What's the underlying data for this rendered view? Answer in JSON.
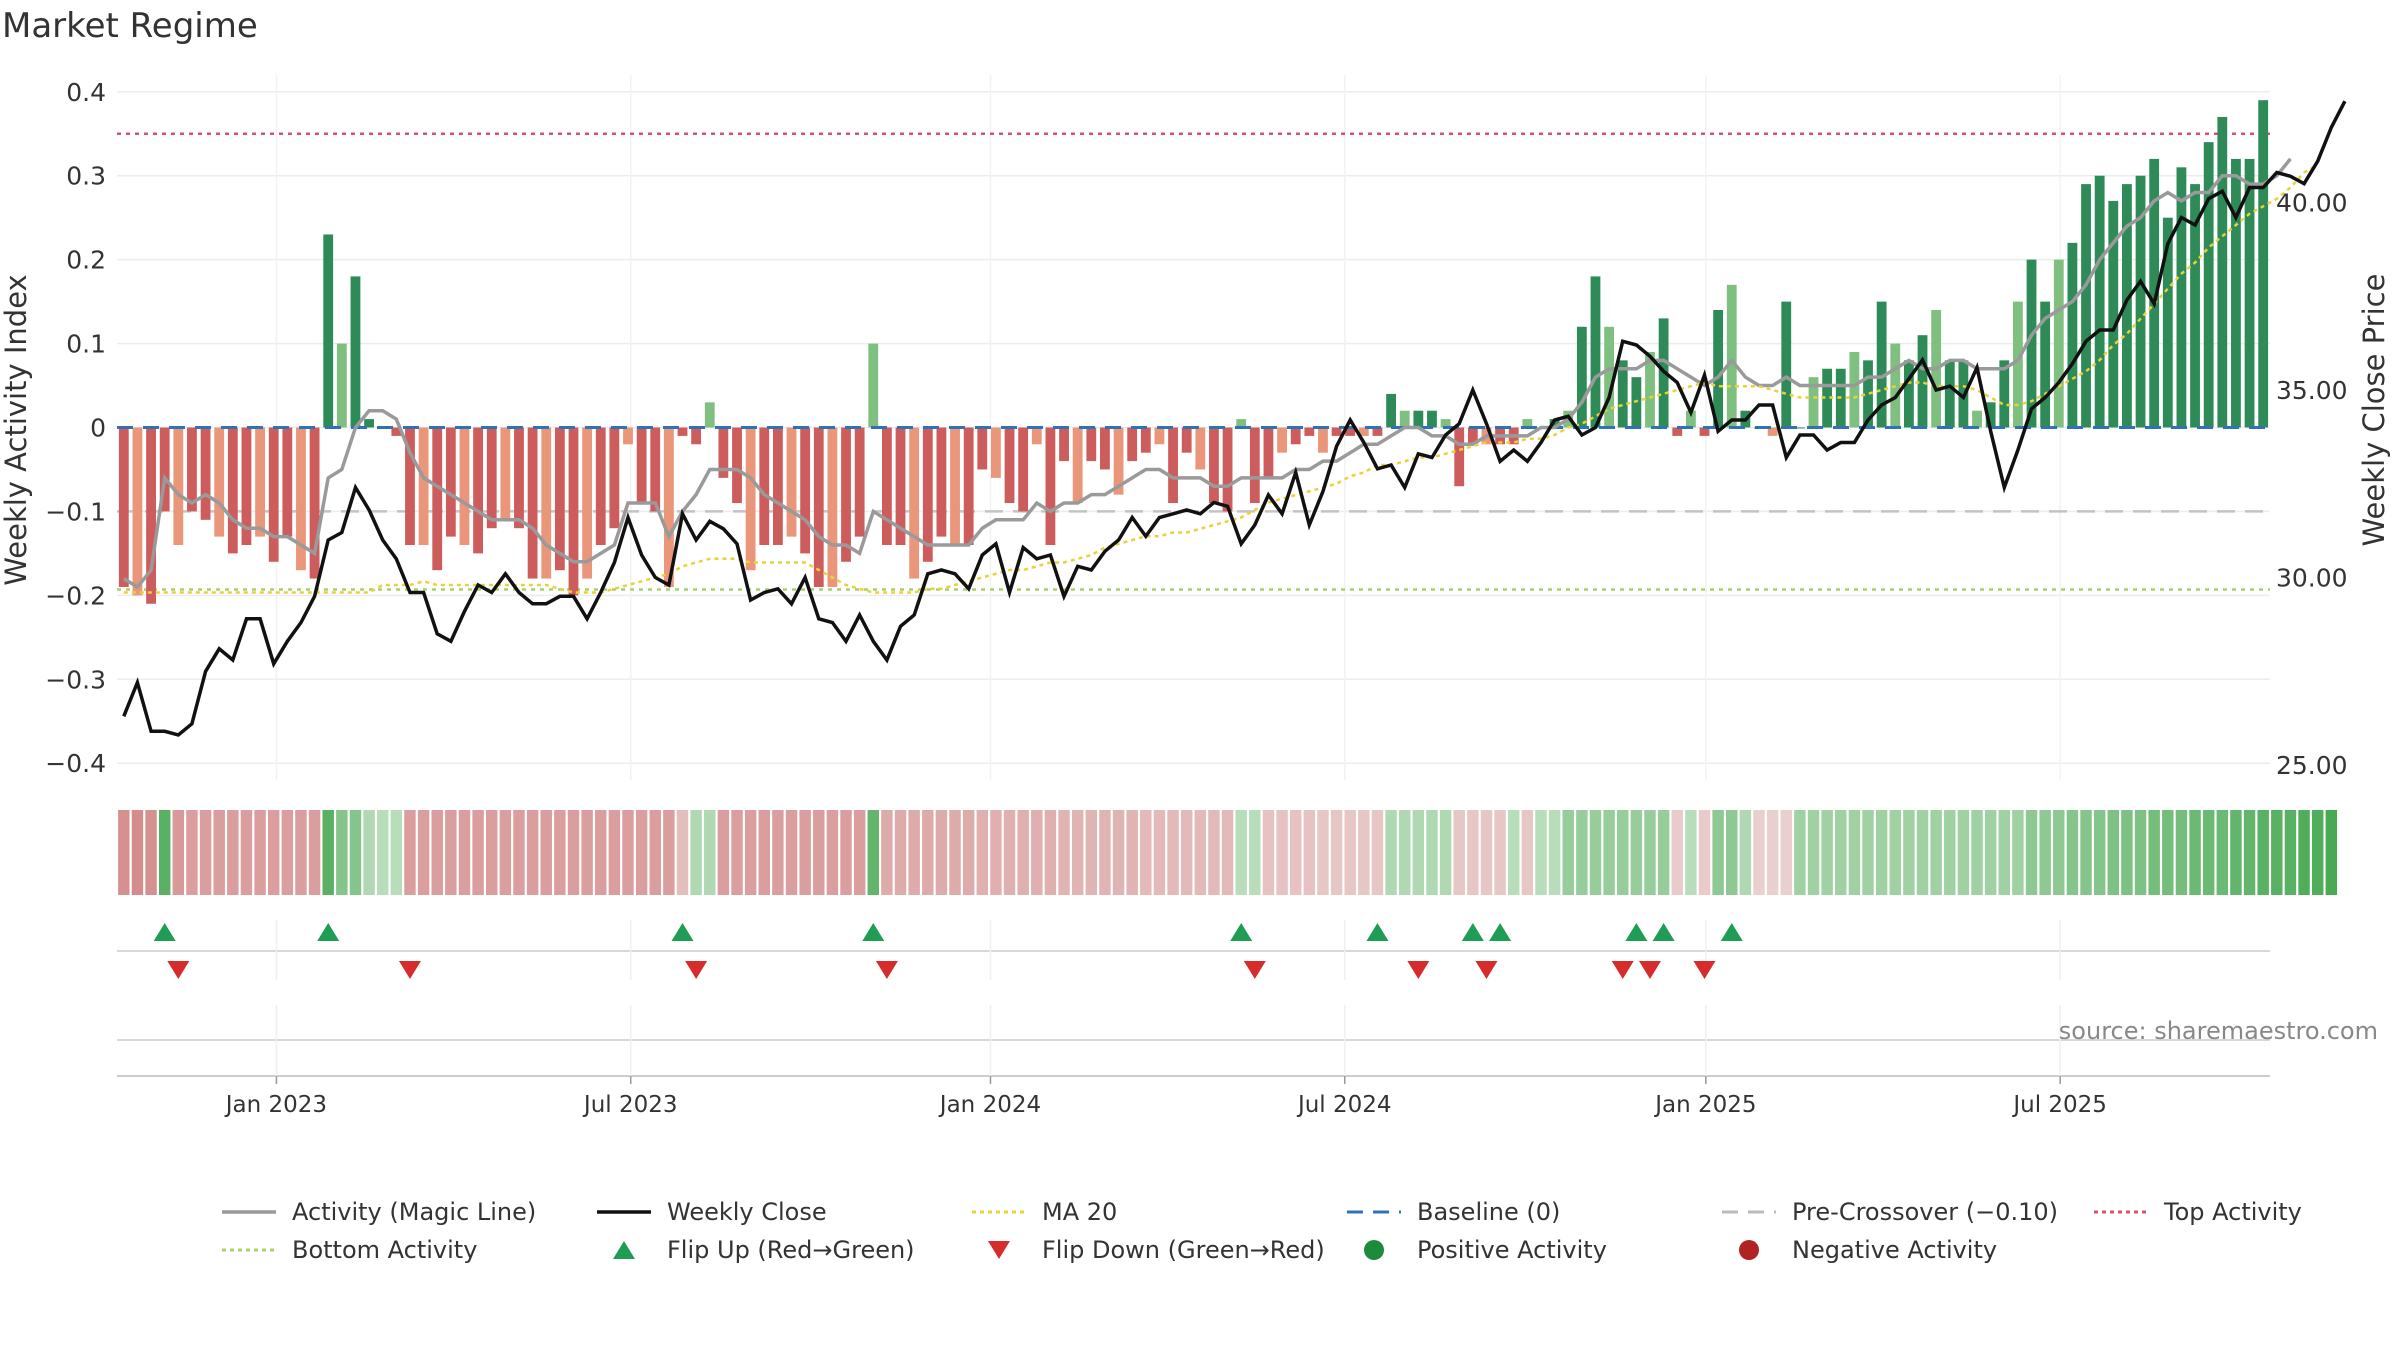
{
  "chart_data": {
    "type": "bar",
    "title": "Market Regime",
    "ylabel_left": "Weekly Activity Index",
    "ylabel_right": "Weekly Close Price",
    "ylim_left": [
      -0.42,
      0.42
    ],
    "ylim_right": [
      24.6,
      43.4
    ],
    "left_ticks": [
      "0.4",
      "0.3",
      "0.2",
      "0.1",
      "0",
      "−0.1",
      "−0.2",
      "−0.3",
      "−0.4"
    ],
    "left_tick_values": [
      0.4,
      0.3,
      0.2,
      0.1,
      0,
      -0.1,
      -0.2,
      -0.3,
      -0.4
    ],
    "right_ticks": [
      "40.00",
      "35.00",
      "30.00",
      "25.00"
    ],
    "right_tick_values": [
      40,
      35,
      30,
      25
    ],
    "x_ticks": [
      "Jan 2023",
      "Jul 2023",
      "Jan 2024",
      "Jul 2024",
      "Jan 2025",
      "Jul 2025"
    ],
    "x_tick_weeks": [
      11.7,
      37.7,
      64.1,
      90.1,
      116.6,
      142.6
    ],
    "reference_lines": {
      "top_activity": 0.35,
      "bottom_activity": -0.193,
      "pre_crossover": -0.1,
      "baseline": 0
    },
    "activity_bars": [
      -0.19,
      -0.2,
      -0.21,
      -0.1,
      -0.14,
      -0.1,
      -0.11,
      -0.13,
      -0.15,
      -0.14,
      -0.13,
      -0.16,
      -0.13,
      -0.17,
      -0.18,
      0.23,
      0.1,
      0.18,
      0.01,
      0.0,
      -0.01,
      -0.14,
      -0.14,
      -0.17,
      -0.13,
      -0.14,
      -0.15,
      -0.12,
      -0.11,
      -0.12,
      -0.18,
      -0.18,
      -0.17,
      -0.2,
      -0.18,
      -0.14,
      -0.12,
      -0.02,
      -0.09,
      -0.1,
      -0.19,
      -0.01,
      -0.02,
      0.03,
      -0.06,
      -0.09,
      -0.17,
      -0.14,
      -0.14,
      -0.13,
      -0.15,
      -0.19,
      -0.19,
      -0.16,
      -0.13,
      0.1,
      -0.14,
      -0.14,
      -0.18,
      -0.16,
      -0.13,
      -0.14,
      -0.14,
      -0.05,
      -0.06,
      -0.09,
      -0.1,
      -0.02,
      -0.14,
      -0.04,
      -0.09,
      -0.04,
      -0.05,
      -0.08,
      -0.04,
      -0.03,
      -0.02,
      -0.09,
      -0.03,
      -0.05,
      -0.09,
      -0.1,
      0.01,
      -0.09,
      -0.06,
      -0.03,
      -0.02,
      -0.01,
      -0.03,
      -0.01,
      -0.01,
      -0.01,
      -0.01,
      0.04,
      0.02,
      0.02,
      0.02,
      0.01,
      -0.07,
      -0.02,
      -0.02,
      -0.02,
      -0.02,
      0.01,
      0.0,
      0.01,
      0.02,
      0.12,
      0.18,
      0.12,
      0.08,
      0.06,
      0.09,
      0.13,
      -0.01,
      0.02,
      -0.01,
      0.14,
      0.17,
      0.02,
      0.0,
      -0.01,
      0.15,
      0.0,
      0.06,
      0.07,
      0.07,
      0.09,
      0.08,
      0.15,
      0.1,
      0.08,
      0.11,
      0.14,
      0.08,
      0.08,
      0.02,
      0.03,
      0.08,
      0.15,
      0.2,
      0.15,
      0.2,
      0.22,
      0.29,
      0.3,
      0.27,
      0.29,
      0.3,
      0.32,
      0.25,
      0.31,
      0.29,
      0.34,
      0.37,
      0.32,
      0.32,
      0.39
    ],
    "weekly_close": [
      26.3,
      27.2,
      25.9,
      25.9,
      25.8,
      26.1,
      27.5,
      28.1,
      27.8,
      28.9,
      28.9,
      27.7,
      28.3,
      28.8,
      29.5,
      31.0,
      31.2,
      32.4,
      31.8,
      31.0,
      30.5,
      29.6,
      29.6,
      28.5,
      28.3,
      29.1,
      29.8,
      29.6,
      30.1,
      29.6,
      29.3,
      29.3,
      29.5,
      29.5,
      28.9,
      29.6,
      30.4,
      31.6,
      30.6,
      30.0,
      29.8,
      31.7,
      31.0,
      31.5,
      31.3,
      30.9,
      29.4,
      29.6,
      29.7,
      29.3,
      30.0,
      28.9,
      28.8,
      28.3,
      29.0,
      28.3,
      27.8,
      28.7,
      29.0,
      30.1,
      30.2,
      30.1,
      29.7,
      30.6,
      30.9,
      29.6,
      30.8,
      30.5,
      30.6,
      29.5,
      30.3,
      30.2,
      30.7,
      31.0,
      31.6,
      31.1,
      31.6,
      31.7,
      31.8,
      31.7,
      32.0,
      31.9,
      30.9,
      31.4,
      32.2,
      31.7,
      32.8,
      31.4,
      32.3,
      33.5,
      34.2,
      33.6,
      32.9,
      33.0,
      32.4,
      33.3,
      33.2,
      33.8,
      34.1,
      35.0,
      34.1,
      33.1,
      33.4,
      33.1,
      33.6,
      34.2,
      34.3,
      33.8,
      34.0,
      34.8,
      36.3,
      36.2,
      35.9,
      35.5,
      35.2,
      34.4,
      35.4,
      33.9,
      34.2,
      34.2,
      34.6,
      34.6,
      33.2,
      33.8,
      33.8,
      33.4,
      33.6,
      33.6,
      34.2,
      34.6,
      34.8,
      35.3,
      35.8,
      35.0,
      35.1,
      34.8,
      35.6,
      33.9,
      32.4,
      33.4,
      34.5,
      34.8,
      35.2,
      35.7,
      36.3,
      36.6,
      36.6,
      37.4,
      37.9,
      37.3,
      38.9,
      39.6,
      39.4,
      40.1,
      40.3,
      39.6,
      40.4,
      40.4,
      40.8,
      40.7,
      40.5,
      41.1,
      42.0,
      42.7
    ],
    "magic_line": [
      -0.18,
      -0.19,
      -0.17,
      -0.06,
      -0.08,
      -0.09,
      -0.08,
      -0.09,
      -0.11,
      -0.12,
      -0.12,
      -0.13,
      -0.13,
      -0.14,
      -0.15,
      -0.06,
      -0.05,
      0.0,
      0.02,
      0.02,
      0.01,
      -0.03,
      -0.06,
      -0.07,
      -0.08,
      -0.09,
      -0.1,
      -0.11,
      -0.11,
      -0.11,
      -0.12,
      -0.14,
      -0.15,
      -0.16,
      -0.16,
      -0.15,
      -0.14,
      -0.09,
      -0.09,
      -0.09,
      -0.13,
      -0.1,
      -0.08,
      -0.05,
      -0.05,
      -0.05,
      -0.06,
      -0.08,
      -0.09,
      -0.1,
      -0.11,
      -0.13,
      -0.14,
      -0.14,
      -0.15,
      -0.1,
      -0.11,
      -0.12,
      -0.13,
      -0.14,
      -0.14,
      -0.14,
      -0.14,
      -0.12,
      -0.11,
      -0.11,
      -0.11,
      -0.09,
      -0.1,
      -0.09,
      -0.09,
      -0.08,
      -0.08,
      -0.07,
      -0.06,
      -0.05,
      -0.05,
      -0.06,
      -0.06,
      -0.06,
      -0.07,
      -0.07,
      -0.06,
      -0.06,
      -0.06,
      -0.06,
      -0.05,
      -0.05,
      -0.04,
      -0.04,
      -0.03,
      -0.02,
      -0.02,
      -0.01,
      0.0,
      0.0,
      -0.01,
      -0.01,
      -0.02,
      -0.02,
      -0.01,
      -0.01,
      -0.01,
      -0.01,
      0.0,
      0.0,
      0.01,
      0.03,
      0.06,
      0.07,
      0.07,
      0.07,
      0.08,
      0.08,
      0.07,
      0.06,
      0.05,
      0.06,
      0.08,
      0.06,
      0.05,
      0.05,
      0.06,
      0.05,
      0.05,
      0.05,
      0.05,
      0.05,
      0.06,
      0.06,
      0.07,
      0.08,
      0.07,
      0.07,
      0.08,
      0.08,
      0.07,
      0.07,
      0.07,
      0.08,
      0.11,
      0.13,
      0.14,
      0.15,
      0.17,
      0.2,
      0.22,
      0.24,
      0.25,
      0.27,
      0.28,
      0.27,
      0.28,
      0.28,
      0.3,
      0.3,
      0.29,
      0.29,
      0.3,
      0.32
    ],
    "ma20": [
      29.6,
      29.6,
      29.6,
      29.6,
      29.6,
      29.6,
      29.6,
      29.6,
      29.6,
      29.6,
      29.6,
      29.6,
      29.6,
      29.6,
      29.6,
      29.6,
      29.6,
      29.6,
      29.6,
      29.8,
      29.8,
      29.8,
      29.9,
      29.8,
      29.8,
      29.8,
      29.8,
      29.8,
      29.8,
      29.8,
      29.8,
      29.8,
      29.7,
      29.6,
      29.6,
      29.6,
      29.7,
      29.8,
      29.9,
      30.0,
      30.1,
      30.3,
      30.4,
      30.5,
      30.5,
      30.5,
      30.4,
      30.4,
      30.4,
      30.4,
      30.4,
      30.2,
      30.0,
      29.8,
      29.7,
      29.6,
      29.6,
      29.6,
      29.6,
      29.7,
      29.7,
      29.8,
      29.9,
      30.0,
      30.1,
      30.2,
      30.2,
      30.3,
      30.4,
      30.4,
      30.5,
      30.6,
      30.8,
      30.9,
      31.0,
      31.1,
      31.1,
      31.2,
      31.2,
      31.3,
      31.4,
      31.5,
      31.6,
      31.8,
      32.0,
      32.1,
      32.2,
      32.3,
      32.4,
      32.5,
      32.7,
      32.8,
      33.0,
      33.0,
      33.1,
      33.2,
      33.2,
      33.3,
      33.4,
      33.5,
      33.6,
      33.6,
      33.6,
      33.7,
      33.7,
      33.8,
      34.0,
      34.1,
      34.3,
      34.5,
      34.6,
      34.7,
      34.8,
      34.9,
      35.0,
      35.1,
      35.2,
      35.1,
      35.1,
      35.1,
      35.1,
      35.0,
      34.9,
      34.8,
      34.8,
      34.8,
      34.8,
      34.8,
      34.9,
      35.0,
      35.1,
      35.2,
      35.2,
      35.1,
      35.1,
      35.1,
      35.0,
      34.8,
      34.6,
      34.6,
      34.7,
      34.9,
      35.1,
      35.3,
      35.5,
      35.8,
      36.2,
      36.5,
      36.9,
      37.3,
      37.7,
      38.1,
      38.4,
      38.8,
      39.1,
      39.4,
      39.7,
      39.9,
      40.1,
      40.4,
      40.8,
      41.0
    ],
    "heat_strip": [
      -0.9,
      -0.95,
      -0.9,
      0.85,
      -0.8,
      -0.75,
      -0.75,
      -0.75,
      -0.75,
      -0.75,
      -0.75,
      -0.75,
      -0.75,
      -0.75,
      -0.75,
      0.85,
      0.6,
      0.6,
      0.35,
      0.3,
      0.3,
      -0.75,
      -0.75,
      -0.75,
      -0.75,
      -0.75,
      -0.75,
      -0.75,
      -0.75,
      -0.75,
      -0.75,
      -0.75,
      -0.75,
      -0.75,
      -0.75,
      -0.75,
      -0.75,
      -0.75,
      -0.75,
      -0.75,
      -0.75,
      -0.4,
      0.35,
      0.35,
      -0.75,
      -0.75,
      -0.75,
      -0.75,
      -0.75,
      -0.75,
      -0.75,
      -0.75,
      -0.75,
      -0.75,
      -0.75,
      0.8,
      -0.6,
      -0.6,
      -0.6,
      -0.6,
      -0.6,
      -0.6,
      -0.6,
      -0.55,
      -0.55,
      -0.55,
      -0.55,
      -0.55,
      -0.55,
      -0.5,
      -0.5,
      -0.5,
      -0.5,
      -0.5,
      -0.5,
      -0.45,
      -0.45,
      -0.45,
      -0.45,
      -0.45,
      -0.45,
      -0.45,
      0.3,
      0.3,
      -0.35,
      -0.35,
      -0.35,
      -0.35,
      -0.3,
      -0.3,
      -0.3,
      -0.3,
      -0.3,
      0.35,
      0.35,
      0.35,
      0.35,
      0.35,
      -0.3,
      -0.3,
      -0.3,
      -0.3,
      0.3,
      -0.3,
      0.3,
      0.3,
      0.5,
      0.5,
      0.5,
      0.5,
      0.5,
      0.5,
      0.5,
      0.5,
      -0.25,
      0.3,
      -0.25,
      0.55,
      0.55,
      0.35,
      -0.2,
      -0.2,
      -0.2,
      0.45,
      0.45,
      0.45,
      0.45,
      0.45,
      0.45,
      0.45,
      0.45,
      0.45,
      0.45,
      0.45,
      0.45,
      0.45,
      0.45,
      0.45,
      0.45,
      0.45,
      0.55,
      0.55,
      0.55,
      0.6,
      0.6,
      0.6,
      0.65,
      0.65,
      0.65,
      0.7,
      0.7,
      0.7,
      0.75,
      0.75,
      0.75,
      0.8,
      0.8,
      0.85,
      0.85,
      0.85,
      0.9,
      0.9,
      0.95
    ],
    "flip_up_weeks": [
      3,
      15,
      41,
      55,
      82,
      92,
      99,
      101,
      111,
      113,
      118
    ],
    "flip_down_weeks": [
      4,
      21,
      42,
      56,
      83,
      95,
      100,
      110,
      112,
      116
    ],
    "annotations": [
      "source: sharemaestro.com"
    ],
    "legend": [
      {
        "label": "Activity (Magic Line)",
        "style": "line",
        "color": "#999999"
      },
      {
        "label": "Weekly Close",
        "style": "line",
        "color": "#111111"
      },
      {
        "label": "MA 20",
        "style": "dotted",
        "color": "#e8d23a"
      },
      {
        "label": "Baseline (0)",
        "style": "dashed",
        "color": "#2f73b5"
      },
      {
        "label": "Pre-Crossover (−0.10)",
        "style": "dashed",
        "color": "#bbbbbb"
      },
      {
        "label": "Top Activity",
        "style": "dotted",
        "color": "#d9506e"
      },
      {
        "label": "Bottom Activity",
        "style": "dotted",
        "color": "#a9d16b"
      },
      {
        "label": "Flip Up (Red→Green)",
        "style": "triangle-up",
        "color": "#1f9d55"
      },
      {
        "label": "Flip Down (Green→Red)",
        "style": "triangle-down",
        "color": "#d62c2c"
      },
      {
        "label": "Positive Activity",
        "style": "dot",
        "color": "#1e8a3c"
      },
      {
        "label": "Negative Activity",
        "style": "dot",
        "color": "#b22222"
      }
    ],
    "colors": {
      "pos_strong": "#2e8b57",
      "pos_light": "#7fbf7f",
      "neg_strong": "#cd5c5c",
      "neg_light": "#e9967a"
    }
  }
}
